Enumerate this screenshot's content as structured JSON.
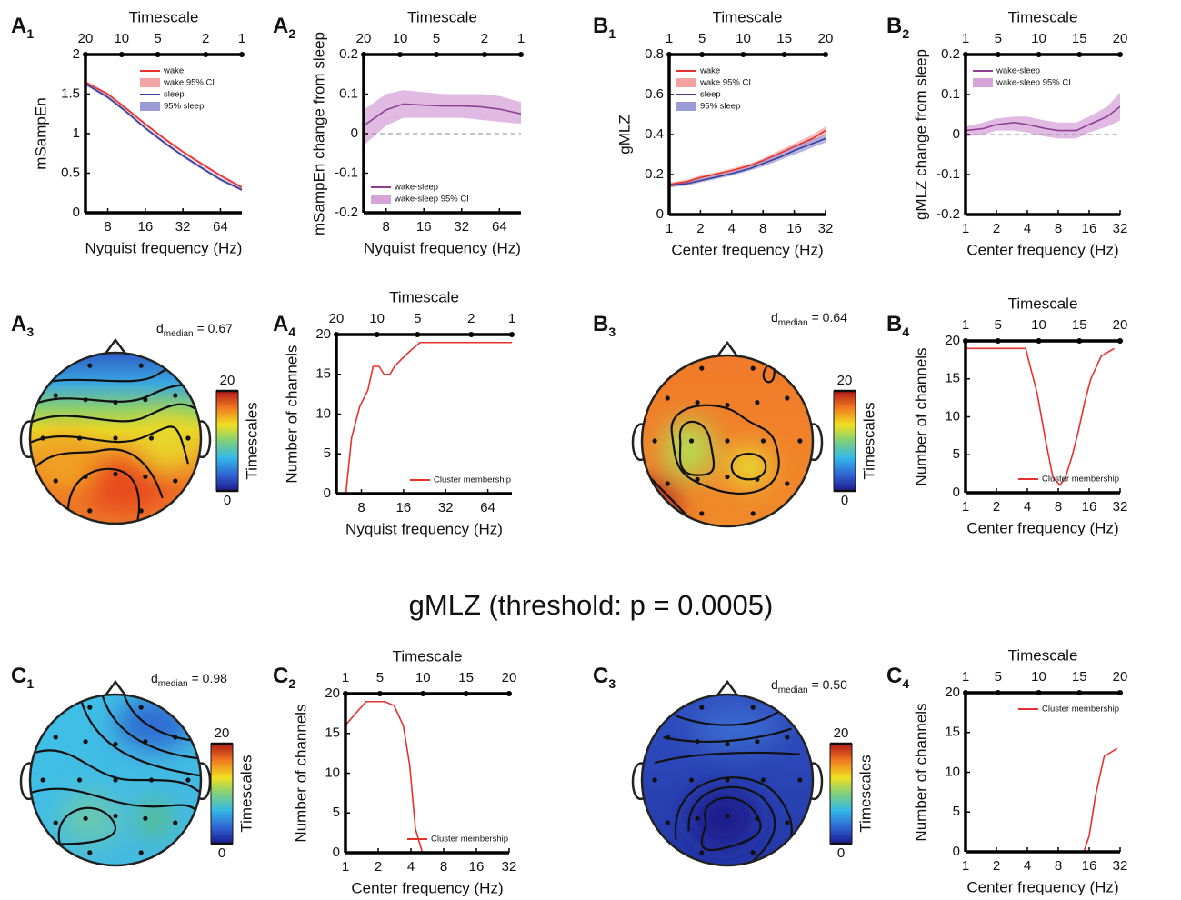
{
  "figure_title": "gMLZ (threshold: p = 0.0005)",
  "chart_data": [
    {
      "type": "line",
      "panel": "A",
      "panel_sub": "1",
      "x2label": "Timescale",
      "x2scale": "log",
      "x2lim": [
        20,
        1
      ],
      "x2ticks": [
        20,
        10,
        5,
        2,
        1
      ],
      "xlabel": "Nyquist frequency (Hz)",
      "ylabel": "mSampEn",
      "xscale": "log",
      "xlim": [
        5.3,
        95
      ],
      "xticks": [
        8,
        16,
        32,
        64
      ],
      "ylim": [
        0,
        2
      ],
      "yticks": [
        0,
        0.5,
        1,
        1.5,
        2
      ],
      "legend": "upper right",
      "x": [
        5.3,
        8,
        11,
        16,
        23,
        32,
        45,
        64,
        95
      ],
      "series": [
        {
          "name": "wake",
          "color": "#e8312f",
          "values": [
            1.65,
            1.5,
            1.33,
            1.12,
            0.93,
            0.77,
            0.62,
            0.47,
            0.32
          ]
        },
        {
          "name": "wake 95% CI",
          "color": "#f4a3a3",
          "lower": [
            1.63,
            1.48,
            1.31,
            1.1,
            0.91,
            0.75,
            0.6,
            0.45,
            0.3
          ],
          "upper": [
            1.67,
            1.52,
            1.35,
            1.14,
            0.95,
            0.79,
            0.64,
            0.49,
            0.34
          ]
        },
        {
          "name": "sleep",
          "color": "#3b3f9a",
          "values": [
            1.63,
            1.46,
            1.29,
            1.07,
            0.88,
            0.72,
            0.57,
            0.42,
            0.29
          ]
        },
        {
          "name": "95% sleep",
          "color": "#9b9bd6",
          "lower": [
            1.61,
            1.44,
            1.27,
            1.05,
            0.86,
            0.7,
            0.55,
            0.4,
            0.27
          ],
          "upper": [
            1.65,
            1.48,
            1.31,
            1.09,
            0.9,
            0.74,
            0.59,
            0.44,
            0.31
          ]
        }
      ]
    },
    {
      "type": "line",
      "panel": "A",
      "panel_sub": "2",
      "x2label": "Timescale",
      "x2scale": "log",
      "x2lim": [
        20,
        1
      ],
      "x2ticks": [
        20,
        10,
        5,
        2,
        1
      ],
      "xlabel": "Nyquist frequency (Hz)",
      "ylabel": "mSampEn change from sleep",
      "xscale": "log",
      "xlim": [
        5.3,
        95
      ],
      "xticks": [
        8,
        16,
        32,
        64
      ],
      "ylim": [
        -0.2,
        0.2
      ],
      "yticks": [
        -0.2,
        -0.1,
        0,
        0.1,
        0.2
      ],
      "hline": 0,
      "legend": "lower left",
      "x": [
        5.3,
        8,
        11,
        16,
        23,
        32,
        45,
        64,
        95
      ],
      "series": [
        {
          "name": "wake-sleep",
          "color": "#8e3f94",
          "values": [
            0.02,
            0.06,
            0.075,
            0.072,
            0.07,
            0.07,
            0.068,
            0.062,
            0.05
          ]
        },
        {
          "name": "wake-sleep 95% CI",
          "color": "#d6a3d8",
          "lower": [
            -0.03,
            0.02,
            0.04,
            0.04,
            0.04,
            0.04,
            0.035,
            0.03,
            0.025
          ],
          "upper": [
            0.06,
            0.1,
            0.11,
            0.105,
            0.1,
            0.1,
            0.1,
            0.095,
            0.08
          ]
        }
      ]
    },
    {
      "type": "line",
      "panel": "B",
      "panel_sub": "1",
      "x2label": "Timescale",
      "x2scale": "linear",
      "x2lim": [
        1,
        20
      ],
      "x2ticks": [
        1,
        5,
        10,
        15,
        20
      ],
      "xlabel": "Center frequency (Hz)",
      "ylabel": "gMLZ",
      "xscale": "log",
      "xlim": [
        1,
        32
      ],
      "xticks": [
        1,
        2,
        4,
        8,
        16,
        32
      ],
      "ylim": [
        0,
        0.8
      ],
      "yticks": [
        0,
        0.2,
        0.4,
        0.6,
        0.8
      ],
      "legend": "upper left",
      "x": [
        1,
        1.5,
        2,
        3,
        4,
        6,
        8,
        12,
        16,
        24,
        32
      ],
      "series": [
        {
          "name": "wake",
          "color": "#e8312f",
          "values": [
            0.15,
            0.165,
            0.185,
            0.205,
            0.22,
            0.245,
            0.27,
            0.31,
            0.34,
            0.38,
            0.42
          ]
        },
        {
          "name": "wake 95% CI",
          "color": "#f4a3a3",
          "lower": [
            0.14,
            0.155,
            0.175,
            0.195,
            0.21,
            0.235,
            0.26,
            0.295,
            0.325,
            0.36,
            0.4
          ],
          "upper": [
            0.16,
            0.175,
            0.195,
            0.215,
            0.23,
            0.255,
            0.28,
            0.325,
            0.355,
            0.4,
            0.44
          ]
        },
        {
          "name": "sleep",
          "color": "#3b3f9a",
          "values": [
            0.145,
            0.155,
            0.17,
            0.19,
            0.205,
            0.23,
            0.255,
            0.29,
            0.32,
            0.355,
            0.38
          ]
        },
        {
          "name": "95% sleep",
          "color": "#9b9bd6",
          "lower": [
            0.135,
            0.145,
            0.16,
            0.18,
            0.195,
            0.22,
            0.24,
            0.275,
            0.3,
            0.335,
            0.36
          ],
          "upper": [
            0.155,
            0.165,
            0.18,
            0.2,
            0.215,
            0.24,
            0.27,
            0.305,
            0.34,
            0.375,
            0.4
          ]
        }
      ]
    },
    {
      "type": "line",
      "panel": "B",
      "panel_sub": "2",
      "x2label": "Timescale",
      "x2scale": "linear",
      "x2lim": [
        1,
        20
      ],
      "x2ticks": [
        1,
        5,
        10,
        15,
        20
      ],
      "xlabel": "Center frequency (Hz)",
      "ylabel": "gMLZ change from sleep",
      "xscale": "log",
      "xlim": [
        1,
        32
      ],
      "xticks": [
        1,
        2,
        4,
        8,
        16,
        32
      ],
      "ylim": [
        -0.2,
        0.2
      ],
      "yticks": [
        -0.2,
        -0.1,
        0,
        0.1,
        0.2
      ],
      "hline": 0,
      "legend": "upper left",
      "x": [
        1,
        1.5,
        2,
        3,
        4,
        6,
        8,
        12,
        16,
        24,
        32
      ],
      "series": [
        {
          "name": "wake-sleep",
          "color": "#8e3f94",
          "values": [
            0.01,
            0.015,
            0.025,
            0.03,
            0.025,
            0.015,
            0.01,
            0.01,
            0.025,
            0.045,
            0.07
          ]
        },
        {
          "name": "wake-sleep 95% CI",
          "color": "#d6a3d8",
          "lower": [
            -0.005,
            0,
            0.01,
            0.01,
            0.005,
            -0.005,
            -0.01,
            -0.01,
            0.005,
            0.02,
            0.035
          ],
          "upper": [
            0.02,
            0.03,
            0.04,
            0.045,
            0.045,
            0.035,
            0.03,
            0.03,
            0.045,
            0.07,
            0.105
          ]
        }
      ]
    },
    {
      "type": "topoplot",
      "panel": "A",
      "panel_sub": "3",
      "d_symbol": "d",
      "d_subscript": "median",
      "d_text": "= 0.67",
      "colorbar_label": "Timescales",
      "clim": [
        0,
        20
      ],
      "cticks": [
        0,
        20
      ]
    },
    {
      "type": "line",
      "panel": "A",
      "panel_sub": "4",
      "x2label": "Timescale",
      "x2scale": "log",
      "x2lim": [
        20,
        1
      ],
      "x2ticks": [
        20,
        10,
        5,
        2,
        1
      ],
      "xlabel": "Nyquist frequency (Hz)",
      "ylabel": "Number of channels",
      "xscale": "log",
      "xlim": [
        5.3,
        95
      ],
      "xticks": [
        8,
        16,
        32,
        64
      ],
      "ylim": [
        0,
        20
      ],
      "yticks": [
        0,
        5,
        10,
        15,
        20
      ],
      "legend": "lower right",
      "x": [
        6.2,
        6.8,
        7.8,
        8.9,
        9.7,
        10.7,
        11.6,
        12.8,
        13.8,
        15.7,
        18,
        21,
        95
      ],
      "series": [
        {
          "name": "Cluster membership",
          "color": "#e8312f",
          "values": [
            0,
            7,
            11,
            13,
            16,
            16,
            15,
            15,
            16,
            17,
            18,
            19,
            19
          ]
        }
      ]
    },
    {
      "type": "topoplot",
      "panel": "B",
      "panel_sub": "3",
      "d_symbol": "d",
      "d_subscript": "median",
      "d_text": "= 0.64",
      "colorbar_label": "Timescales",
      "clim": [
        0,
        20
      ],
      "cticks": [
        0,
        20
      ]
    },
    {
      "type": "line",
      "panel": "B",
      "panel_sub": "4",
      "x2label": "Timescale",
      "x2scale": "linear",
      "x2lim": [
        1,
        20
      ],
      "x2ticks": [
        1,
        5,
        10,
        15,
        20
      ],
      "xlabel": "Center frequency (Hz)",
      "ylabel": "Number of channels",
      "xscale": "log",
      "xlim": [
        1,
        32
      ],
      "xticks": [
        1,
        2,
        4,
        8,
        16,
        32
      ],
      "ylim": [
        0,
        20
      ],
      "yticks": [
        0,
        5,
        10,
        15,
        20
      ],
      "legend": "lower right",
      "x": [
        1,
        3.85,
        5,
        6,
        7.1,
        8.3,
        9.4,
        11,
        12.5,
        14.5,
        16.6,
        21,
        28
      ],
      "series": [
        {
          "name": "Cluster membership",
          "color": "#e8312f",
          "values": [
            19,
            19,
            13,
            7,
            2,
            1,
            2,
            5,
            8,
            12,
            15,
            18,
            19
          ]
        }
      ]
    },
    {
      "type": "topoplot",
      "panel": "C",
      "panel_sub": "1",
      "d_symbol": "d",
      "d_subscript": "median",
      "d_text": "= 0.98",
      "colorbar_label": "Timescales",
      "clim": [
        0,
        20
      ],
      "cticks": [
        0,
        20
      ]
    },
    {
      "type": "line",
      "panel": "C",
      "panel_sub": "2",
      "x2label": "Timescale",
      "x2scale": "linear",
      "x2lim": [
        1,
        20
      ],
      "x2ticks": [
        1,
        5,
        10,
        15,
        20
      ],
      "xlabel": "Center frequency (Hz)",
      "ylabel": "Number of channels",
      "xscale": "log",
      "xlim": [
        1,
        32
      ],
      "xticks": [
        1,
        2,
        4,
        8,
        16,
        32
      ],
      "ylim": [
        0,
        20
      ],
      "yticks": [
        0,
        5,
        10,
        15,
        20
      ],
      "legend": "lower right",
      "x": [
        1,
        1.15,
        1.55,
        2.3,
        2.8,
        3.4,
        3.9,
        4.4,
        5.1
      ],
      "series": [
        {
          "name": "Cluster membership",
          "color": "#e8312f",
          "values": [
            16,
            17,
            19,
            19,
            18.5,
            16,
            11,
            3,
            0
          ]
        }
      ]
    },
    {
      "type": "topoplot",
      "panel": "C",
      "panel_sub": "3",
      "d_symbol": "d",
      "d_subscript": "median",
      "d_text": "= 0.50",
      "colorbar_label": "Timescales",
      "clim": [
        0,
        20
      ],
      "cticks": [
        0,
        20
      ]
    },
    {
      "type": "line",
      "panel": "C",
      "panel_sub": "4",
      "x2label": "Timescale",
      "x2scale": "linear",
      "x2lim": [
        1,
        20
      ],
      "x2ticks": [
        1,
        5,
        10,
        15,
        20
      ],
      "xlabel": "Center frequency (Hz)",
      "ylabel": "Number of channels",
      "xscale": "log",
      "xlim": [
        1,
        32
      ],
      "xticks": [
        1,
        2,
        4,
        8,
        16,
        32
      ],
      "ylim": [
        0,
        20
      ],
      "yticks": [
        0,
        5,
        10,
        15,
        20
      ],
      "legend": "upper right",
      "x": [
        14.2,
        16,
        18.4,
        22.4,
        30
      ],
      "series": [
        {
          "name": "Cluster membership",
          "color": "#e8312f",
          "values": [
            0,
            2,
            7,
            12,
            13
          ]
        }
      ]
    }
  ]
}
